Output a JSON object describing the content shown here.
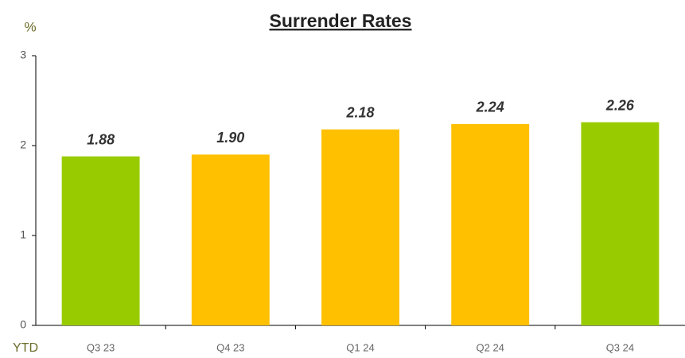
{
  "chart_data": {
    "type": "bar",
    "title": "Surrender Rates",
    "unit_label": "%",
    "x_axis_note": "YTD",
    "categories": [
      "Q3 23",
      "Q4 23",
      "Q1 24",
      "Q2 24",
      "Q3 24"
    ],
    "values": [
      1.88,
      1.9,
      2.18,
      2.24,
      2.26
    ],
    "value_labels": [
      "1.88",
      "1.90",
      "2.18",
      "2.24",
      "2.26"
    ],
    "colors": [
      "#99cc00",
      "#ffc000",
      "#ffc000",
      "#ffc000",
      "#99cc00"
    ],
    "ylim": [
      0,
      3
    ],
    "yticks": [
      0,
      1,
      2,
      3
    ],
    "grid": false
  }
}
